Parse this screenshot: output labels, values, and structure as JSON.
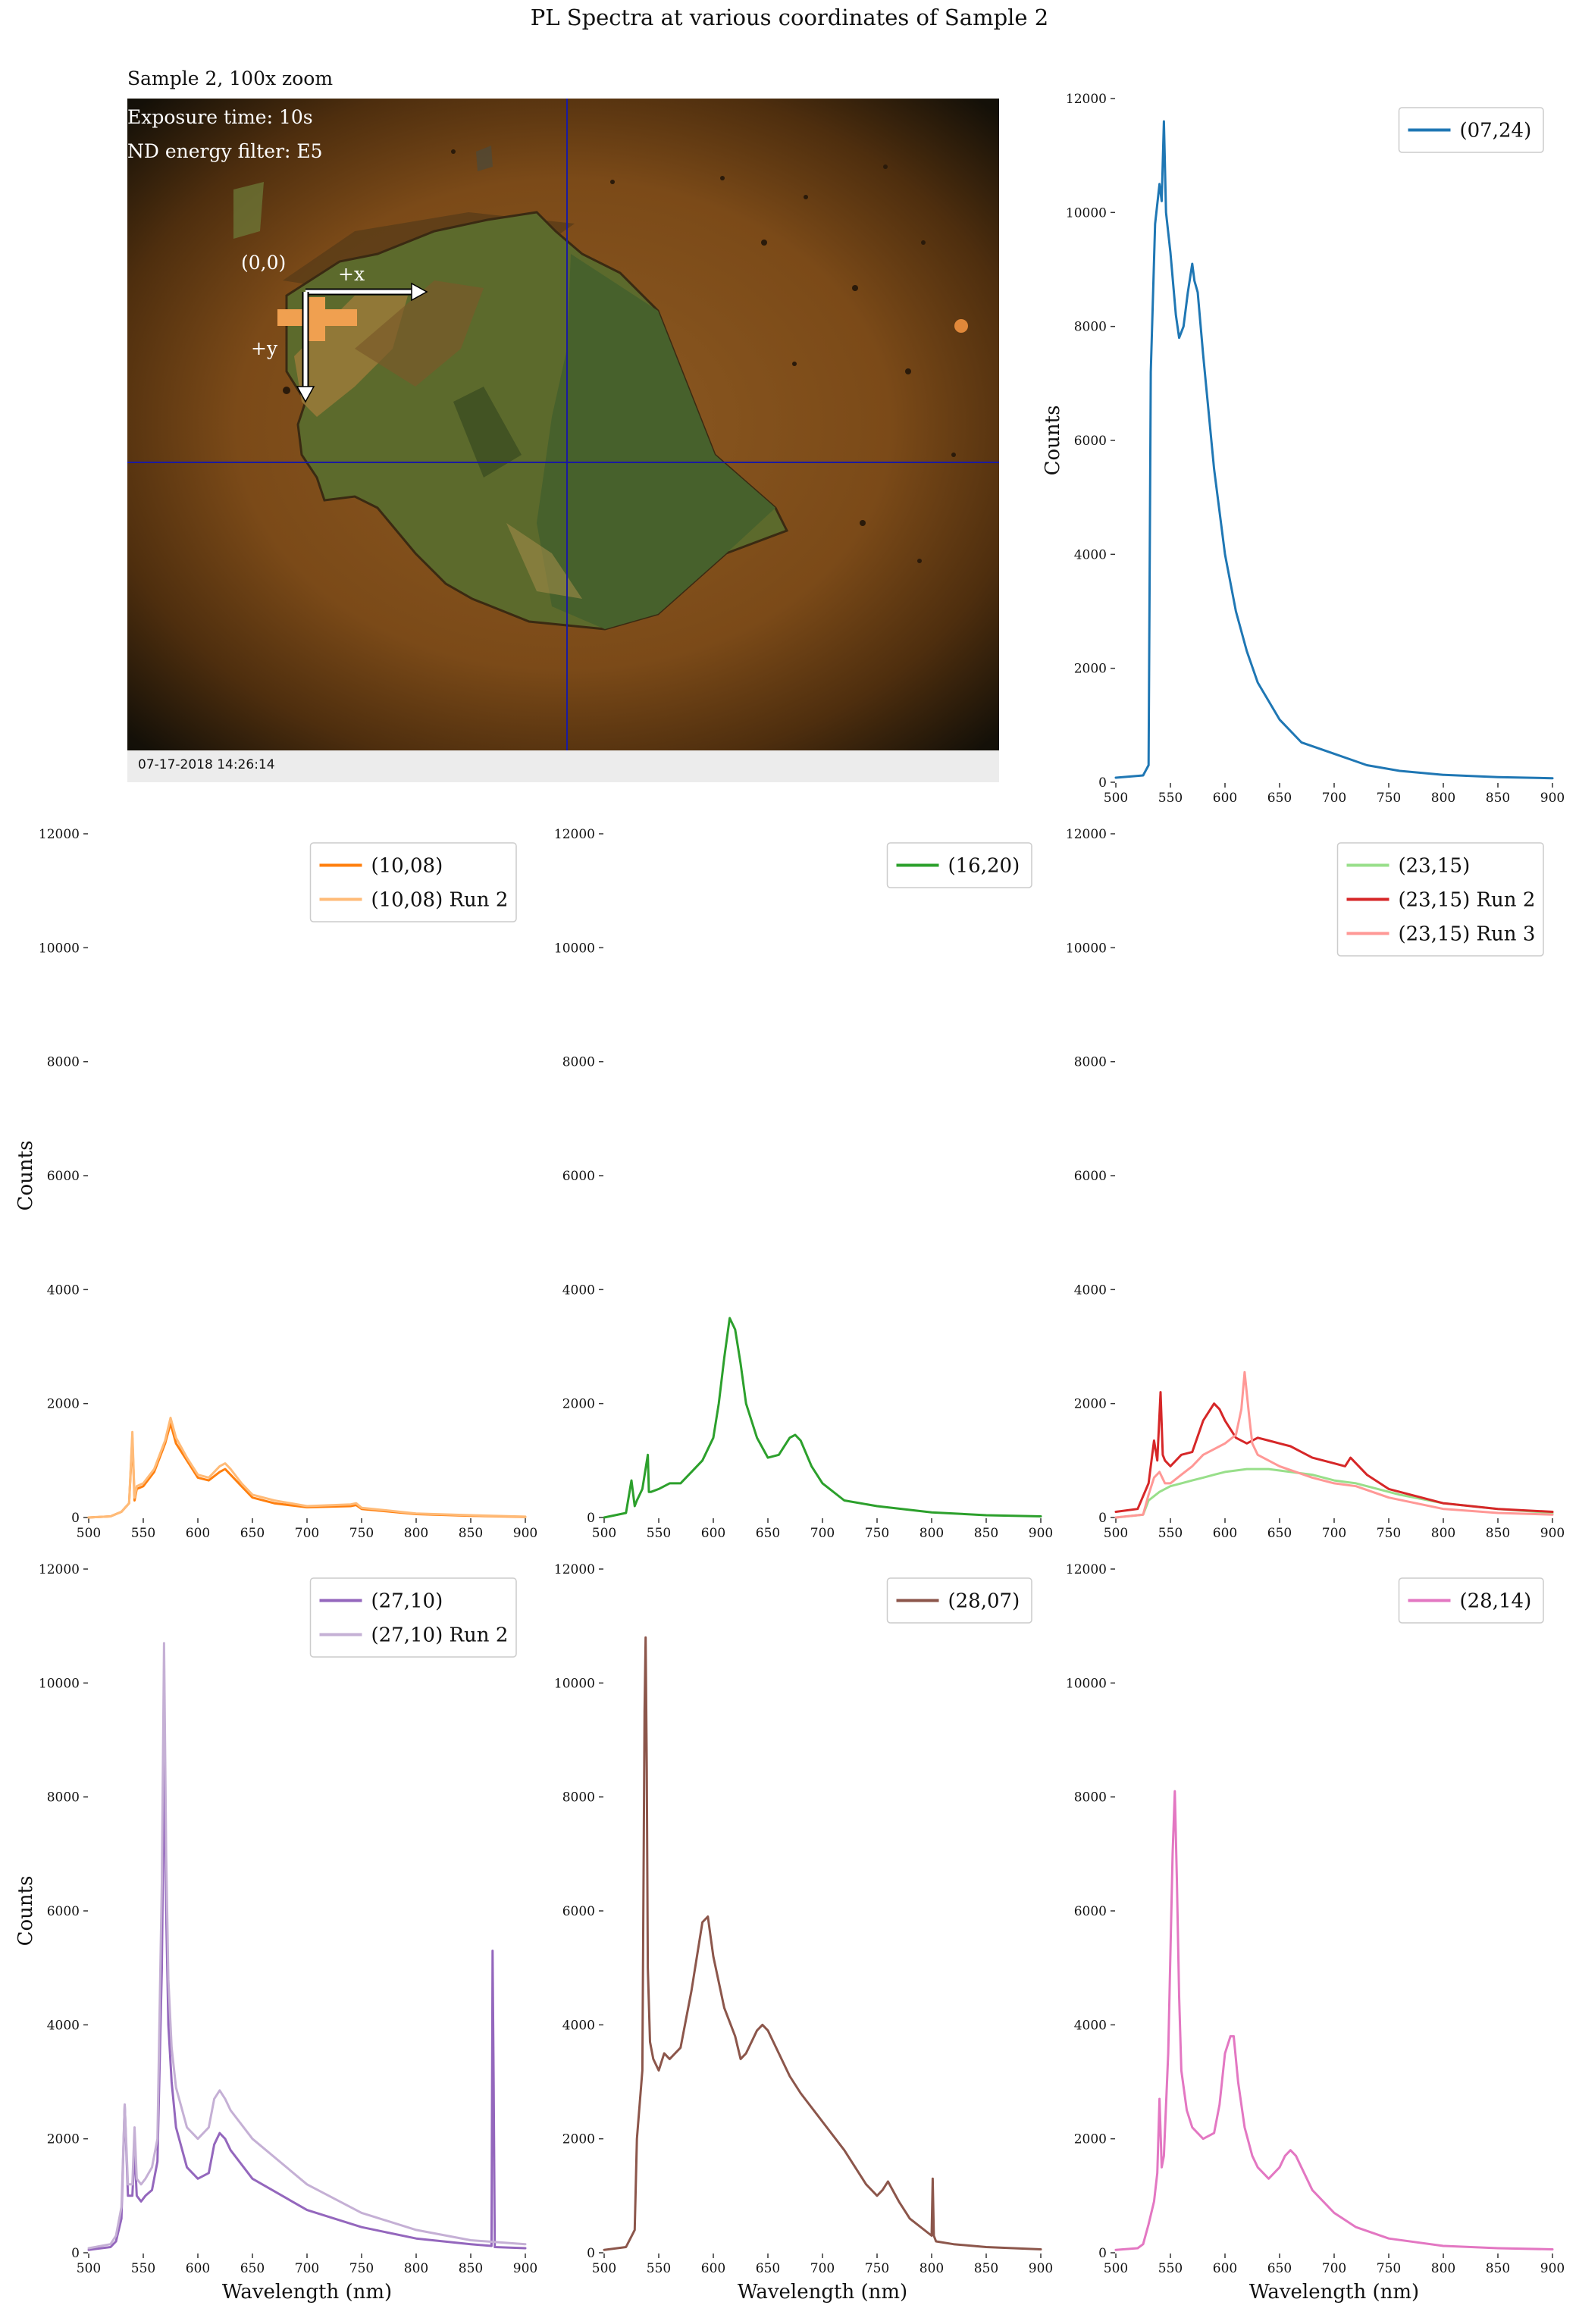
{
  "figure": {
    "title": "PL Spectra at various coordinates of Sample 2"
  },
  "image_panel": {
    "caption": "Sample 2, 100x zoom",
    "exposure": "Exposure time: 10s",
    "filter": "ND energy filter: E5",
    "origin_label": "(0,0)",
    "x_label": "+x",
    "y_label": "+y",
    "timestamp": "07-17-2018 14:26:14"
  },
  "chart_data": [
    {
      "type": "line",
      "title": "",
      "xlabel": "",
      "ylabel": "Counts",
      "xlim": [
        500,
        900
      ],
      "ylim": [
        0,
        12000
      ],
      "xticks": [
        500,
        550,
        600,
        650,
        700,
        750,
        800,
        850,
        900
      ],
      "yticks": [
        0,
        2000,
        4000,
        6000,
        8000,
        10000,
        12000
      ],
      "legend_position": "top-right",
      "series": [
        {
          "name": "(07,24)",
          "color": "#1f77b4",
          "x": [
            500,
            525,
            530,
            532,
            536,
            540,
            542,
            544,
            546,
            550,
            555,
            558,
            562,
            566,
            570,
            572,
            575,
            580,
            590,
            600,
            610,
            620,
            630,
            650,
            670,
            700,
            730,
            760,
            800,
            850,
            900
          ],
          "y": [
            80,
            120,
            300,
            7200,
            9800,
            10500,
            10200,
            11600,
            10000,
            9300,
            8200,
            7800,
            8000,
            8600,
            9100,
            8800,
            8600,
            7500,
            5500,
            4000,
            3000,
            2300,
            1750,
            1100,
            700,
            500,
            300,
            200,
            130,
            90,
            70
          ]
        }
      ]
    },
    {
      "type": "line",
      "title": "",
      "xlabel": "",
      "ylabel": "Counts",
      "xlim": [
        500,
        900
      ],
      "ylim": [
        0,
        12000
      ],
      "xticks": [
        500,
        550,
        600,
        650,
        700,
        750,
        800,
        850,
        900
      ],
      "yticks": [
        0,
        2000,
        4000,
        6000,
        8000,
        10000,
        12000
      ],
      "legend_position": "top-right",
      "series": [
        {
          "name": "(10,08)",
          "color": "#ff7f0e",
          "x": [
            500,
            520,
            530,
            537,
            540,
            542,
            544,
            550,
            560,
            570,
            575,
            580,
            590,
            600,
            610,
            620,
            625,
            630,
            640,
            650,
            670,
            700,
            740,
            745,
            750,
            800,
            850,
            900
          ],
          "y": [
            0,
            20,
            100,
            250,
            1400,
            300,
            500,
            550,
            800,
            1300,
            1650,
            1300,
            1000,
            700,
            650,
            800,
            850,
            750,
            550,
            350,
            250,
            180,
            200,
            220,
            150,
            60,
            30,
            10
          ]
        },
        {
          "name": "(10,08) Run 2",
          "color": "#ffbb78",
          "x": [
            500,
            520,
            530,
            537,
            540,
            542,
            544,
            550,
            560,
            570,
            575,
            580,
            590,
            600,
            610,
            620,
            625,
            630,
            640,
            650,
            670,
            700,
            740,
            745,
            750,
            800,
            850,
            900
          ],
          "y": [
            0,
            20,
            100,
            250,
            1500,
            350,
            550,
            600,
            850,
            1350,
            1750,
            1400,
            1050,
            750,
            700,
            900,
            950,
            850,
            600,
            400,
            300,
            200,
            230,
            250,
            170,
            70,
            40,
            15
          ]
        }
      ]
    },
    {
      "type": "line",
      "title": "",
      "xlabel": "",
      "ylabel": "",
      "xlim": [
        500,
        900
      ],
      "ylim": [
        0,
        12000
      ],
      "xticks": [
        500,
        550,
        600,
        650,
        700,
        750,
        800,
        850,
        900
      ],
      "yticks": [
        0,
        2000,
        4000,
        6000,
        8000,
        10000,
        12000
      ],
      "legend_position": "top-right",
      "series": [
        {
          "name": "(16,20)",
          "color": "#2ca02c",
          "x": [
            500,
            520,
            525,
            528,
            530,
            535,
            540,
            541,
            543,
            550,
            560,
            570,
            580,
            590,
            600,
            605,
            610,
            615,
            620,
            625,
            630,
            640,
            650,
            660,
            670,
            675,
            680,
            690,
            700,
            720,
            750,
            800,
            850,
            900
          ],
          "y": [
            0,
            80,
            650,
            200,
            300,
            500,
            1100,
            450,
            450,
            500,
            600,
            600,
            800,
            1000,
            1400,
            2000,
            2800,
            3500,
            3300,
            2700,
            2000,
            1400,
            1050,
            1100,
            1400,
            1450,
            1350,
            900,
            600,
            300,
            200,
            90,
            40,
            20
          ]
        }
      ]
    },
    {
      "type": "line",
      "title": "",
      "xlabel": "",
      "ylabel": "",
      "xlim": [
        500,
        900
      ],
      "ylim": [
        0,
        12000
      ],
      "xticks": [
        500,
        550,
        600,
        650,
        700,
        750,
        800,
        850,
        900
      ],
      "yticks": [
        0,
        2000,
        4000,
        6000,
        8000,
        10000,
        12000
      ],
      "legend_position": "top-right",
      "series": [
        {
          "name": "(23,15)",
          "color": "#98df8a",
          "x": [
            500,
            525,
            530,
            540,
            550,
            560,
            570,
            580,
            590,
            600,
            620,
            640,
            660,
            680,
            700,
            720,
            740,
            760,
            800,
            850,
            900
          ],
          "y": [
            0,
            50,
            300,
            450,
            550,
            600,
            650,
            700,
            750,
            800,
            850,
            850,
            800,
            750,
            650,
            600,
            500,
            400,
            250,
            150,
            80
          ]
        },
        {
          "name": "(23,15) Run 2",
          "color": "#d62728",
          "x": [
            500,
            520,
            530,
            535,
            538,
            541,
            543,
            545,
            550,
            560,
            570,
            580,
            590,
            595,
            600,
            610,
            620,
            630,
            640,
            650,
            660,
            670,
            680,
            700,
            710,
            715,
            720,
            730,
            750,
            800,
            850,
            900
          ],
          "y": [
            100,
            150,
            600,
            1350,
            1000,
            2200,
            1100,
            1000,
            900,
            1100,
            1150,
            1700,
            2000,
            1900,
            1700,
            1400,
            1300,
            1400,
            1350,
            1300,
            1250,
            1150,
            1050,
            950,
            900,
            1050,
            950,
            750,
            500,
            250,
            150,
            100
          ]
        },
        {
          "name": "(23,15) Run 3",
          "color": "#ff9896",
          "x": [
            500,
            525,
            530,
            535,
            540,
            545,
            550,
            560,
            570,
            580,
            590,
            600,
            610,
            615,
            618,
            622,
            625,
            630,
            650,
            680,
            700,
            720,
            750,
            800,
            850,
            900
          ],
          "y": [
            0,
            50,
            400,
            700,
            800,
            600,
            600,
            750,
            900,
            1100,
            1200,
            1300,
            1450,
            1900,
            2550,
            1800,
            1300,
            1100,
            900,
            700,
            600,
            550,
            350,
            150,
            80,
            50
          ]
        }
      ]
    },
    {
      "type": "line",
      "title": "",
      "xlabel": "Wavelength (nm)",
      "ylabel": "Counts",
      "xlim": [
        500,
        900
      ],
      "ylim": [
        0,
        12000
      ],
      "xticks": [
        500,
        550,
        600,
        650,
        700,
        750,
        800,
        850,
        900
      ],
      "yticks": [
        0,
        2000,
        4000,
        6000,
        8000,
        10000,
        12000
      ],
      "legend_position": "top-right",
      "series": [
        {
          "name": "(27,10)",
          "color": "#9467bd",
          "x": [
            500,
            520,
            525,
            530,
            533,
            536,
            540,
            542,
            544,
            548,
            552,
            558,
            563,
            567,
            569,
            571,
            573,
            576,
            580,
            590,
            600,
            610,
            615,
            620,
            625,
            630,
            650,
            700,
            750,
            800,
            850,
            869,
            870,
            871,
            872,
            900
          ],
          "y": [
            50,
            100,
            200,
            600,
            2600,
            1000,
            1000,
            1800,
            1000,
            900,
            1000,
            1100,
            1600,
            5000,
            8600,
            6000,
            4000,
            3000,
            2200,
            1500,
            1300,
            1400,
            1900,
            2100,
            2000,
            1800,
            1300,
            750,
            450,
            250,
            150,
            120,
            5300,
            3000,
            100,
            80
          ]
        },
        {
          "name": "(27,10) Run 2",
          "color": "#c5b0d5",
          "x": [
            500,
            520,
            525,
            530,
            533,
            536,
            540,
            542,
            544,
            548,
            552,
            558,
            563,
            567,
            569,
            571,
            573,
            576,
            580,
            590,
            600,
            610,
            615,
            620,
            625,
            630,
            650,
            700,
            750,
            800,
            850,
            900
          ],
          "y": [
            80,
            150,
            300,
            800,
            2600,
            1200,
            1200,
            2200,
            1300,
            1200,
            1300,
            1500,
            2000,
            6500,
            10700,
            7000,
            4800,
            3600,
            2900,
            2200,
            2000,
            2200,
            2700,
            2850,
            2700,
            2500,
            2000,
            1200,
            700,
            400,
            220,
            150
          ]
        }
      ]
    },
    {
      "type": "line",
      "title": "",
      "xlabel": "Wavelength (nm)",
      "ylabel": "",
      "xlim": [
        500,
        900
      ],
      "ylim": [
        0,
        12000
      ],
      "xticks": [
        500,
        550,
        600,
        650,
        700,
        750,
        800,
        850,
        900
      ],
      "yticks": [
        0,
        2000,
        4000,
        6000,
        8000,
        10000,
        12000
      ],
      "legend_position": "top-right",
      "series": [
        {
          "name": "(28,07)",
          "color": "#8c564b",
          "x": [
            500,
            520,
            528,
            530,
            535,
            537,
            538,
            539,
            540,
            542,
            545,
            550,
            555,
            560,
            570,
            580,
            590,
            595,
            600,
            610,
            620,
            625,
            630,
            640,
            645,
            650,
            660,
            670,
            680,
            700,
            720,
            740,
            750,
            755,
            760,
            770,
            780,
            800,
            801,
            802,
            804,
            820,
            850,
            900
          ],
          "y": [
            50,
            100,
            400,
            2000,
            3200,
            9500,
            10800,
            8500,
            5000,
            3700,
            3400,
            3200,
            3500,
            3400,
            3600,
            4600,
            5800,
            5900,
            5200,
            4300,
            3800,
            3400,
            3500,
            3900,
            4000,
            3900,
            3500,
            3100,
            2800,
            2300,
            1800,
            1200,
            1000,
            1100,
            1250,
            900,
            600,
            300,
            1300,
            300,
            200,
            150,
            100,
            60
          ]
        }
      ]
    },
    {
      "type": "line",
      "title": "",
      "xlabel": "Wavelength (nm)",
      "ylabel": "",
      "xlim": [
        500,
        900
      ],
      "ylim": [
        0,
        12000
      ],
      "xticks": [
        500,
        550,
        600,
        650,
        700,
        750,
        800,
        850,
        900
      ],
      "yticks": [
        0,
        2000,
        4000,
        6000,
        8000,
        10000,
        12000
      ],
      "legend_position": "top-right",
      "series": [
        {
          "name": "(28,14)",
          "color": "#e377c2",
          "x": [
            500,
            520,
            525,
            530,
            535,
            538,
            540,
            542,
            544,
            548,
            552,
            554,
            556,
            558,
            560,
            565,
            570,
            580,
            590,
            595,
            600,
            605,
            608,
            612,
            618,
            625,
            630,
            640,
            650,
            655,
            660,
            665,
            670,
            680,
            700,
            720,
            750,
            800,
            850,
            900
          ],
          "y": [
            50,
            80,
            150,
            500,
            900,
            1400,
            2700,
            1500,
            1700,
            3500,
            7000,
            8100,
            6500,
            4500,
            3200,
            2500,
            2200,
            2000,
            2100,
            2600,
            3500,
            3800,
            3800,
            3000,
            2200,
            1700,
            1500,
            1300,
            1500,
            1700,
            1800,
            1700,
            1500,
            1100,
            700,
            450,
            250,
            120,
            80,
            60
          ]
        }
      ]
    }
  ]
}
